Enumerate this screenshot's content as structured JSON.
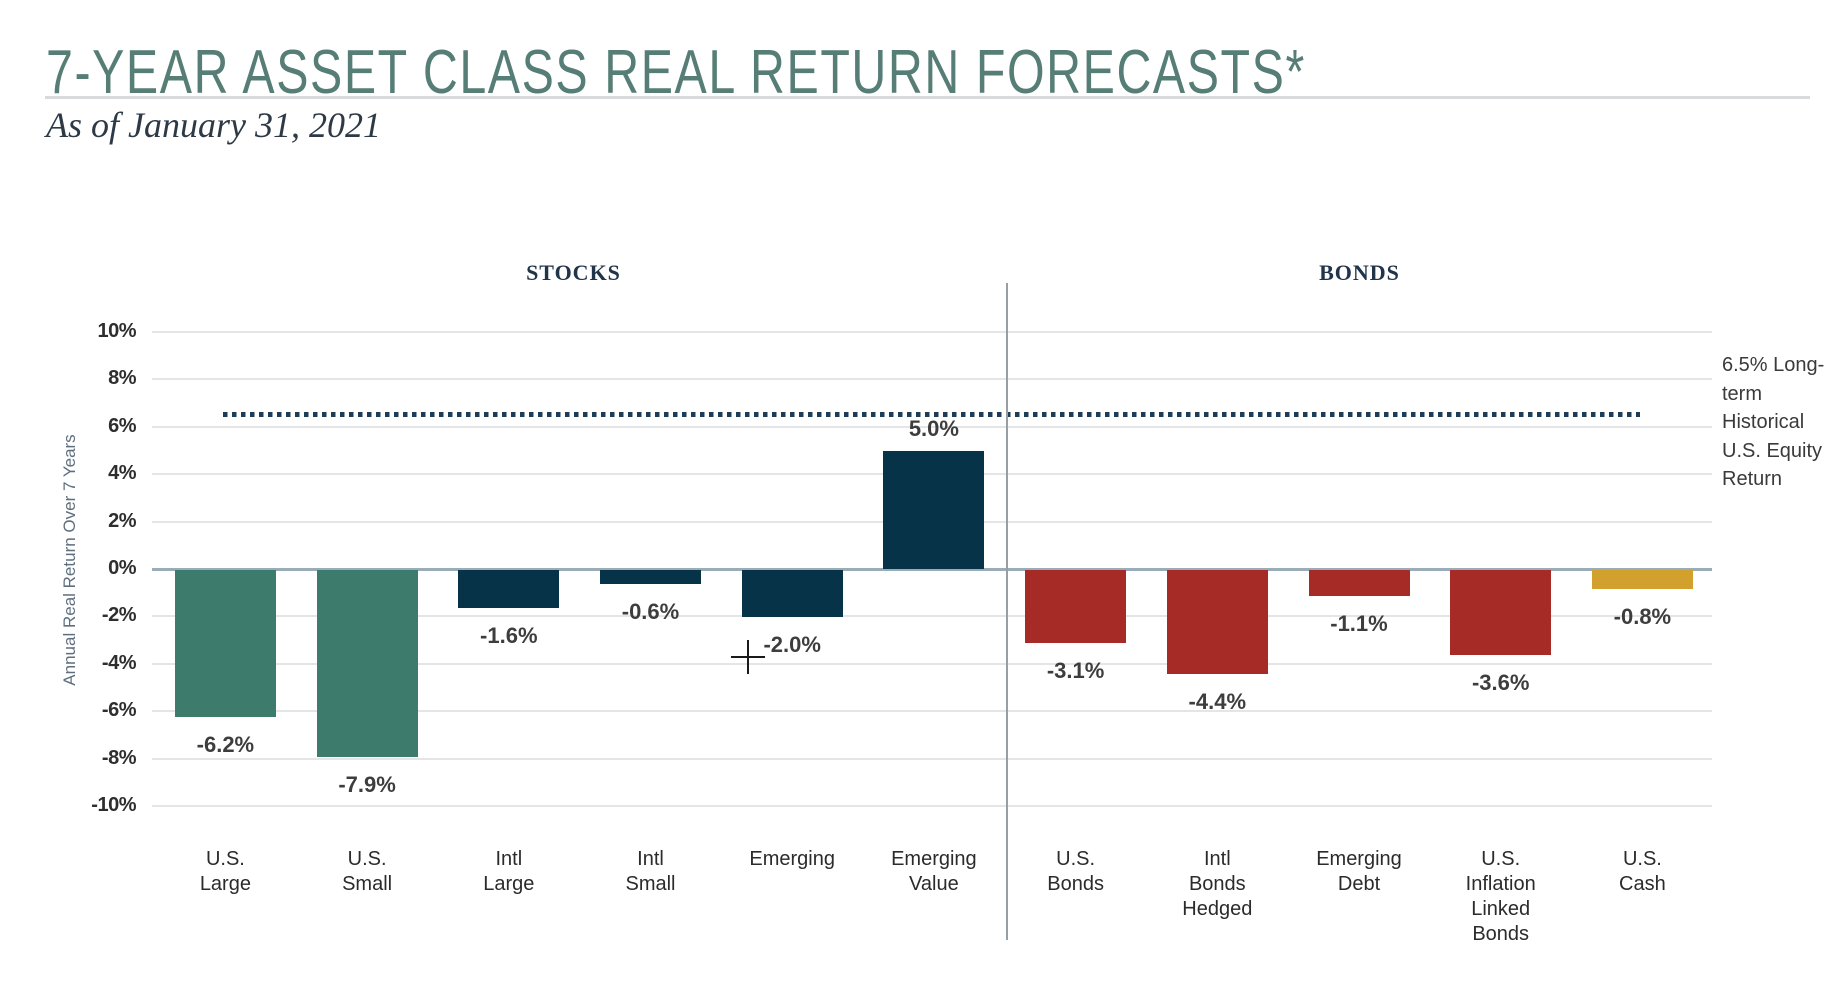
{
  "page": {
    "title": "7-YEAR ASSET CLASS REAL RETURN FORECASTS*",
    "subtitle": "As of January 31, 2021"
  },
  "sections": {
    "stocks_label": "STOCKS",
    "bonds_label": "BONDS"
  },
  "chart_data": {
    "type": "bar",
    "title": "7-Year Asset Class Real Return Forecasts",
    "xlabel": "",
    "ylabel": "Annual Real Return Over 7 Years",
    "ylim": [
      -10,
      10
    ],
    "ytick_step": 2,
    "yticks": [
      "10%",
      "8%",
      "6%",
      "4%",
      "2%",
      "0%",
      "-2%",
      "-4%",
      "-6%",
      "-8%",
      "-10%"
    ],
    "grid": true,
    "legend_position": "none",
    "categories": [
      "U.S. Large",
      "U.S. Small",
      "Intl Large",
      "Intl Small",
      "Emerging",
      "Emerging Value",
      "U.S. Bonds",
      "Intl Bonds Hedged",
      "Emerging Debt",
      "U.S. Inflation Linked Bonds",
      "U.S. Cash"
    ],
    "category_lines": [
      [
        "U.S.",
        "Large"
      ],
      [
        "U.S.",
        "Small"
      ],
      [
        "Intl",
        "Large"
      ],
      [
        "Intl",
        "Small"
      ],
      [
        "Emerging"
      ],
      [
        "Emerging",
        "Value"
      ],
      [
        "U.S.",
        "Bonds"
      ],
      [
        "Intl",
        "Bonds",
        "Hedged"
      ],
      [
        "Emerging",
        "Debt"
      ],
      [
        "U.S.",
        "Inflation",
        "Linked",
        "Bonds"
      ],
      [
        "U.S.",
        "Cash"
      ]
    ],
    "group_of_bar": [
      "stocks",
      "stocks",
      "stocks",
      "stocks",
      "stocks",
      "stocks",
      "bonds",
      "bonds",
      "bonds",
      "bonds",
      "bonds"
    ],
    "values": [
      -6.2,
      -7.9,
      -1.6,
      -0.6,
      -2.0,
      5.0,
      -3.1,
      -4.4,
      -1.1,
      -3.6,
      -0.8
    ],
    "value_labels": [
      "-6.2%",
      "-7.9%",
      "-1.6%",
      "-0.6%",
      "-2.0%",
      "5.0%",
      "-3.1%",
      "-4.4%",
      "-1.1%",
      "-3.6%",
      "-0.8%"
    ],
    "bar_color_keys": [
      "green",
      "green",
      "navy",
      "navy",
      "navy",
      "navy",
      "red",
      "red",
      "red",
      "red",
      "yellow"
    ],
    "reference_line": {
      "value": 6.5,
      "style": "dotted",
      "label": "6.5% Long-term Historical U.S. Equity Return",
      "label_lines": [
        "6.5% Long-",
        "term",
        "Historical",
        "U.S. Equity",
        "Return"
      ]
    }
  },
  "colors": {
    "title": "#567d76",
    "subtitle": "#2d3a46",
    "section_header": "#20344a",
    "green": "#3d7b6c",
    "navy": "#073349",
    "red": "#a62b26",
    "yellow": "#d2a12d",
    "dotted_line": "#1c3c57",
    "grid": "#e3e5e7",
    "zero_line": "#9aacb8"
  }
}
